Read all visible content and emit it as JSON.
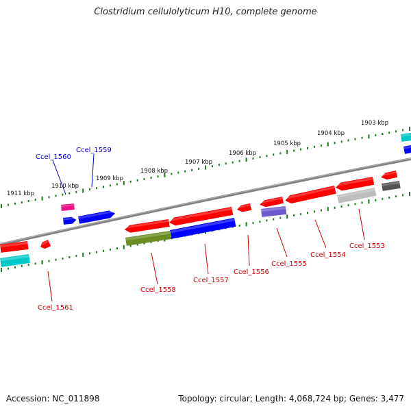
{
  "title": "Clostridium cellulolyticum H10, complete genome",
  "footer": {
    "accession": "Accession: NC_011898",
    "topology": "Topology: circular; Length: 4,068,724 bp; Genes: 3,477"
  },
  "ticks": [
    {
      "label": "1911 kbp"
    },
    {
      "label": "1910 kbp"
    },
    {
      "label": "1909 kbp"
    },
    {
      "label": "1908 kbp"
    },
    {
      "label": "1907 kbp"
    },
    {
      "label": "1906 kbp"
    },
    {
      "label": "1905 kbp"
    },
    {
      "label": "1904 kbp"
    },
    {
      "label": "1903 kbp"
    }
  ],
  "genes": [
    {
      "id": "Ccel_1561",
      "color": "#ff0000"
    },
    {
      "id": "Ccel_1560",
      "color": "#0000cc"
    },
    {
      "id": "Ccel_1559",
      "color": "#0000cc"
    },
    {
      "id": "Ccel_1558",
      "color": "#cc0000"
    },
    {
      "id": "Ccel_1557",
      "color": "#cc0000"
    },
    {
      "id": "Ccel_1556",
      "color": "#cc0000"
    },
    {
      "id": "Ccel_1555",
      "color": "#cc0000"
    },
    {
      "id": "Ccel_1554",
      "color": "#cc0000"
    },
    {
      "id": "Ccel_1553",
      "color": "#cc0000"
    }
  ],
  "colors": {
    "backbone": "#7a7a7a",
    "tick": "#1a7a1a",
    "red": "#ff0000",
    "blue": "#0000ff",
    "cyan": "#00c8c8",
    "magenta": "#ee1188",
    "olive": "#6b8e23",
    "purple": "#6a5acd",
    "silver": "#bdbdbd",
    "darkgray": "#555555"
  }
}
